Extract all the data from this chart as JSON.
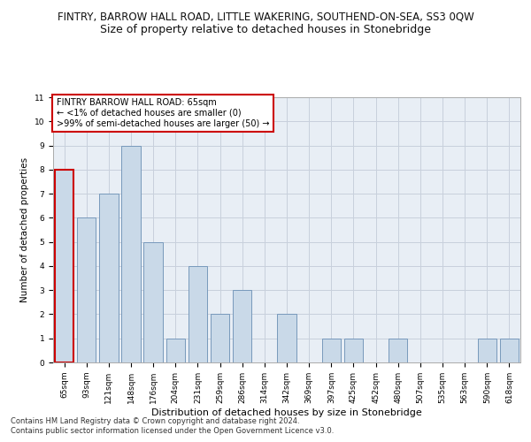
{
  "title_line1": "FINTRY, BARROW HALL ROAD, LITTLE WAKERING, SOUTHEND-ON-SEA, SS3 0QW",
  "title_line2": "Size of property relative to detached houses in Stonebridge",
  "xlabel": "Distribution of detached houses by size in Stonebridge",
  "ylabel": "Number of detached properties",
  "categories": [
    "65sqm",
    "93sqm",
    "121sqm",
    "148sqm",
    "176sqm",
    "204sqm",
    "231sqm",
    "259sqm",
    "286sqm",
    "314sqm",
    "342sqm",
    "369sqm",
    "397sqm",
    "425sqm",
    "452sqm",
    "480sqm",
    "507sqm",
    "535sqm",
    "563sqm",
    "590sqm",
    "618sqm"
  ],
  "values": [
    8,
    6,
    7,
    9,
    5,
    1,
    4,
    2,
    3,
    0,
    2,
    0,
    1,
    1,
    0,
    1,
    0,
    0,
    0,
    1,
    1
  ],
  "bar_color": "#c9d9e8",
  "bar_edge_color": "#7799bb",
  "highlight_index": 0,
  "highlight_bar_edge_color": "#cc0000",
  "annotation_box_text": "FINTRY BARROW HALL ROAD: 65sqm\n← <1% of detached houses are smaller (0)\n>99% of semi-detached houses are larger (50) →",
  "annotation_box_edge_color": "#cc0000",
  "ylim": [
    0,
    11
  ],
  "yticks": [
    0,
    1,
    2,
    3,
    4,
    5,
    6,
    7,
    8,
    9,
    10,
    11
  ],
  "footnote1": "Contains HM Land Registry data © Crown copyright and database right 2024.",
  "footnote2": "Contains public sector information licensed under the Open Government Licence v3.0.",
  "bg_color": "#ffffff",
  "plot_bg_color": "#e8eef5",
  "grid_color": "#c8d0dc",
  "title_fontsize": 8.5,
  "subtitle_fontsize": 9,
  "axis_label_fontsize": 8,
  "ylabel_fontsize": 7.5,
  "tick_fontsize": 6.5,
  "annotation_fontsize": 7,
  "footnote_fontsize": 6
}
